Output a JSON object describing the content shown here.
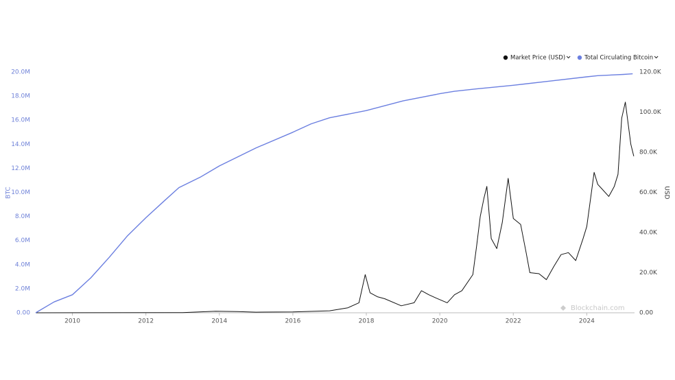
{
  "chart_data": {
    "type": "line",
    "y_label": "BTC",
    "y2_label": "USD",
    "watermark": "Blockchain.com",
    "xlim": [
      2009.0,
      2025.3
    ],
    "xticks": [
      2010,
      2012,
      2014,
      2016,
      2018,
      2020,
      2022,
      2024
    ],
    "ylim": [
      0,
      20000000
    ],
    "yticks": [
      {
        "value": 0,
        "label": "0.00"
      },
      {
        "value": 2000000,
        "label": "2.0M"
      },
      {
        "value": 4000000,
        "label": "4.0M"
      },
      {
        "value": 6000000,
        "label": "6.0M"
      },
      {
        "value": 8000000,
        "label": "8.0M"
      },
      {
        "value": 10000000,
        "label": "10.0M"
      },
      {
        "value": 12000000,
        "label": "12.0M"
      },
      {
        "value": 14000000,
        "label": "14.0M"
      },
      {
        "value": 16000000,
        "label": "16.0M"
      },
      {
        "value": 18000000,
        "label": "18.0M"
      },
      {
        "value": 20000000,
        "label": "20.0M"
      }
    ],
    "y2lim": [
      0,
      120000
    ],
    "y2ticks": [
      {
        "value": 0,
        "label": "0.00"
      },
      {
        "value": 20000,
        "label": "20.0K"
      },
      {
        "value": 40000,
        "label": "40.0K"
      },
      {
        "value": 60000,
        "label": "60.0K"
      },
      {
        "value": 80000,
        "label": "80.0K"
      },
      {
        "value": 100000,
        "label": "100.0K"
      },
      {
        "value": 120000,
        "label": "120.0K"
      }
    ],
    "series": [
      {
        "name": "Market Price (USD)",
        "color": "#111111",
        "axis": "y2",
        "x": [
          2009.0,
          2013.0,
          2013.9,
          2014.5,
          2015.0,
          2016.0,
          2017.0,
          2017.5,
          2017.8,
          2017.97,
          2018.1,
          2018.3,
          2018.5,
          2018.95,
          2019.3,
          2019.5,
          2019.7,
          2019.9,
          2020.2,
          2020.4,
          2020.6,
          2020.9,
          2021.0,
          2021.1,
          2021.2,
          2021.28,
          2021.4,
          2021.55,
          2021.7,
          2021.86,
          2022.0,
          2022.2,
          2022.35,
          2022.45,
          2022.7,
          2022.9,
          2023.1,
          2023.3,
          2023.5,
          2023.7,
          2023.9,
          2024.0,
          2024.2,
          2024.3,
          2024.4,
          2024.6,
          2024.75,
          2024.85,
          2024.95,
          2025.05,
          2025.12,
          2025.2,
          2025.28
        ],
        "values": [
          0,
          100,
          800,
          600,
          300,
          400,
          1000,
          2500,
          5000,
          19000,
          10000,
          8000,
          7000,
          3500,
          5000,
          11000,
          9000,
          7300,
          5000,
          9000,
          11000,
          19000,
          33000,
          48000,
          57000,
          63000,
          37000,
          32000,
          45000,
          67000,
          47000,
          44000,
          30000,
          20000,
          19500,
          16500,
          23000,
          29000,
          30000,
          26000,
          37000,
          43000,
          70000,
          64000,
          62000,
          58000,
          63000,
          69000,
          97000,
          105000,
          95000,
          84000,
          78000
        ]
      },
      {
        "name": "Total Circulating Bitcoin",
        "color": "#6b7fe0",
        "axis": "y",
        "x": [
          2009.0,
          2009.5,
          2010.0,
          2010.5,
          2011.0,
          2011.5,
          2012.0,
          2012.5,
          2012.9,
          2013.5,
          2014.0,
          2015.0,
          2016.0,
          2016.5,
          2017.0,
          2018.0,
          2019.0,
          2020.0,
          2020.4,
          2021.0,
          2022.0,
          2023.0,
          2024.0,
          2024.3,
          2025.0,
          2025.25
        ],
        "values": [
          0,
          900000,
          1500000,
          2900000,
          4600000,
          6400000,
          7900000,
          9300000,
          10400000,
          11300000,
          12200000,
          13700000,
          15000000,
          15700000,
          16200000,
          16800000,
          17600000,
          18200000,
          18400000,
          18600000,
          18900000,
          19250000,
          19600000,
          19700000,
          19800000,
          19850000
        ]
      }
    ]
  }
}
